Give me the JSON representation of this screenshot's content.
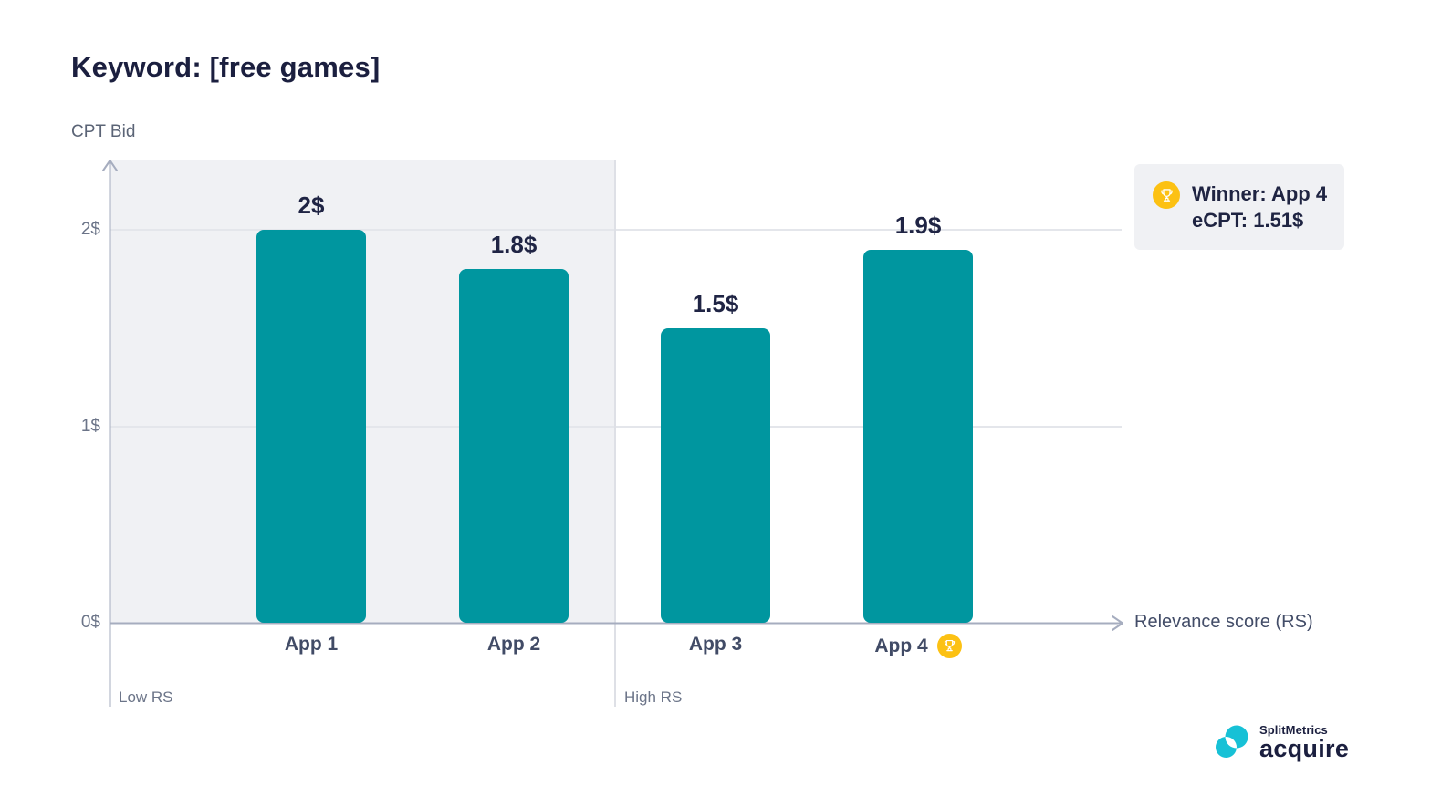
{
  "page": {
    "title": "Keyword: [free games]"
  },
  "chart_data": {
    "type": "bar",
    "categories": [
      "App 1",
      "App 2",
      "App 3",
      "App 4"
    ],
    "values": [
      2,
      1.8,
      1.5,
      1.9
    ],
    "value_labels": [
      "2$",
      "1.8$",
      "1.5$",
      "1.9$"
    ],
    "title": "Keyword: [free games]",
    "xlabel": "Relevance score (RS)",
    "ylabel": "CPT Bid",
    "ylim": [
      0,
      2.35
    ],
    "yticks": [
      {
        "value": 0,
        "label": "0$"
      },
      {
        "value": 1,
        "label": "1$"
      },
      {
        "value": 2,
        "label": "2$"
      }
    ],
    "grid": true,
    "regions": [
      {
        "label": "Low RS",
        "categories": [
          "App 1",
          "App 2"
        ]
      },
      {
        "label": "High RS",
        "categories": [
          "App 3",
          "App 4"
        ]
      }
    ],
    "winner_index": 3,
    "bar_color": "#00969F",
    "annotations": [
      "Winner: App 4",
      "eCPT: 1.51$"
    ]
  },
  "badge": {
    "line1": "Winner: App 4",
    "line2": "eCPT: 1.51$",
    "bg_color": "#F0F1F4",
    "trophy_color": "#FCC113"
  },
  "region_labels": {
    "low": "Low RS",
    "high": "High RS"
  },
  "logo": {
    "brand": "SplitMetrics",
    "product": "acquire",
    "mark_color": "#17C1D6"
  },
  "colors": {
    "bar": "#00969F",
    "title_text": "#1B1F3F",
    "low_region_bg": "#F0F1F4",
    "axis": "#A6ADBF",
    "gridline": "#E4E6EB",
    "trophy_yellow": "#FCC113"
  }
}
